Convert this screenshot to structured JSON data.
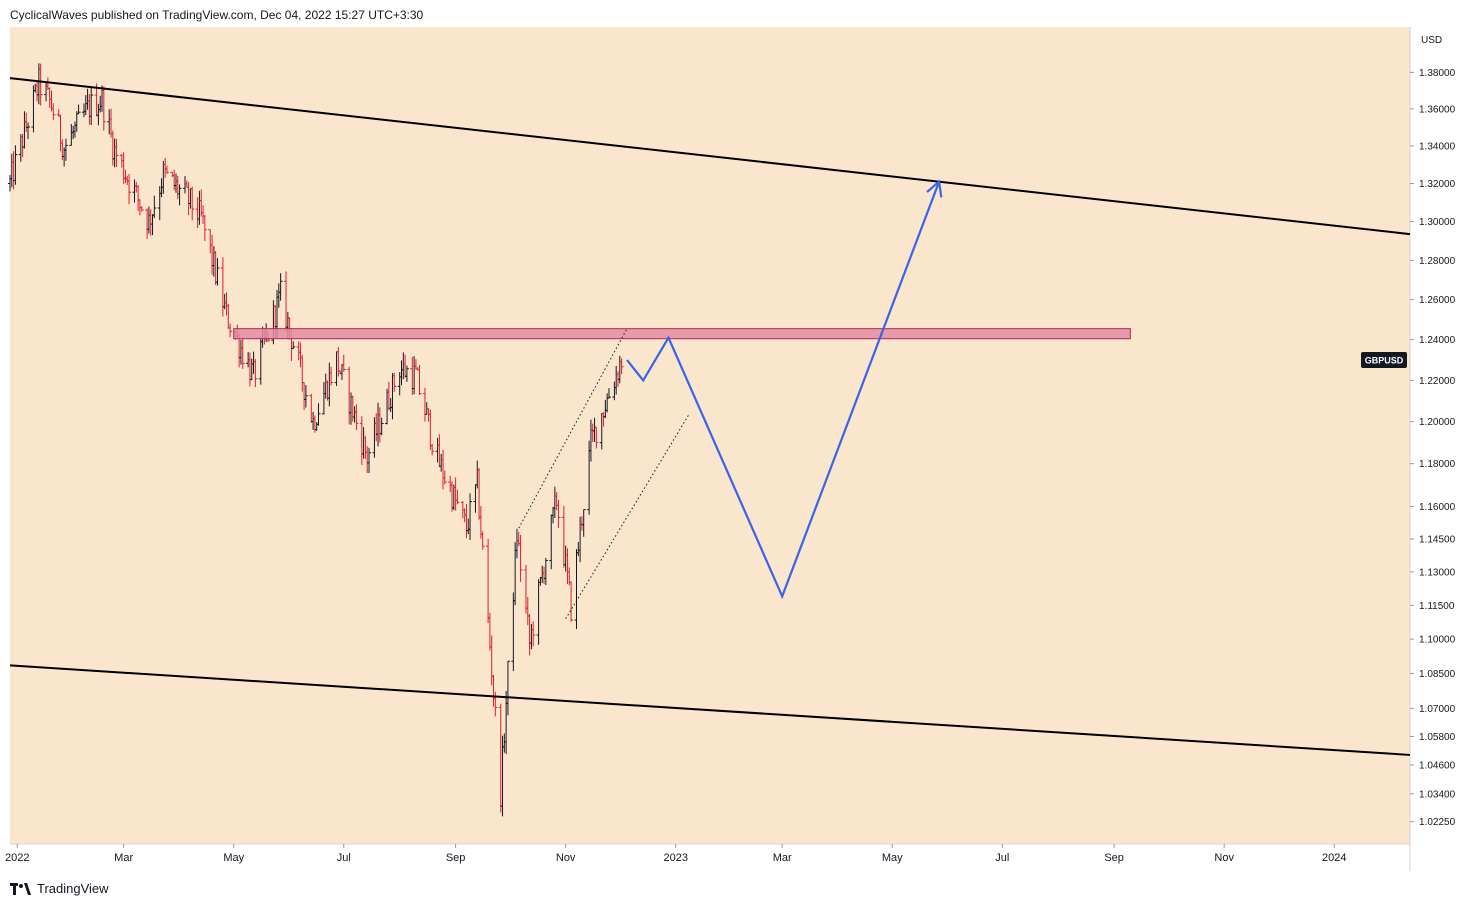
{
  "header": {
    "text": "CyclicalWaves published on TradingView.com, Dec 04, 2022 15:27 UTC+3:30"
  },
  "footer": {
    "brand": "TradingView"
  },
  "colors": {
    "background": "#fae5cd",
    "bull": "#131722",
    "bear": "#e01e2b",
    "projection": "#3864e8",
    "zone_fill": "#e28ea1",
    "zone_border": "#b8255f",
    "trendline": "#000000"
  },
  "chart_data": {
    "type": "ohlc",
    "symbol_label": "GBPUSD",
    "currency_label": "USD",
    "y_ticks": [
      "1.38000",
      "1.36000",
      "1.34000",
      "1.32000",
      "1.30000",
      "1.28000",
      "1.26000",
      "1.24000",
      "1.22000",
      "1.20000",
      "1.18000",
      "1.16000",
      "1.14500",
      "1.13000",
      "1.11500",
      "1.10000",
      "1.08500",
      "1.07000",
      "1.05800",
      "1.04600",
      "1.03400",
      "1.02250"
    ],
    "y_scale": "log",
    "ylim": [
      1.0175,
      1.3885
    ],
    "x_ticks": [
      {
        "label": "2022",
        "date": "2022-01-01"
      },
      {
        "label": "Mar",
        "date": "2022-03-01"
      },
      {
        "label": "May",
        "date": "2022-05-01"
      },
      {
        "label": "Jul",
        "date": "2022-07-01"
      },
      {
        "label": "Sep",
        "date": "2022-09-01"
      },
      {
        "label": "Nov",
        "date": "2022-11-01"
      },
      {
        "label": "2023",
        "date": "2023-01-01"
      },
      {
        "label": "Mar",
        "date": "2023-03-01"
      },
      {
        "label": "May",
        "date": "2023-05-01"
      },
      {
        "label": "Jul",
        "date": "2023-07-01"
      },
      {
        "label": "Sep",
        "date": "2023-09-01"
      },
      {
        "label": "Nov",
        "date": "2023-11-01"
      },
      {
        "label": "2024",
        "date": "2024-01-01"
      }
    ],
    "xlim": [
      "2021-12-28",
      "2024-02-12"
    ],
    "price_path": [
      [
        "2021-12-28",
        1.32
      ],
      [
        "2022-01-13",
        1.374
      ],
      [
        "2022-01-20",
        1.362
      ],
      [
        "2022-01-27",
        1.339
      ],
      [
        "2022-02-10",
        1.361
      ],
      [
        "2022-02-17",
        1.365
      ],
      [
        "2022-02-24",
        1.337
      ],
      [
        "2022-03-15",
        1.3
      ],
      [
        "2022-03-23",
        1.325
      ],
      [
        "2022-04-06",
        1.311
      ],
      [
        "2022-04-13",
        1.302
      ],
      [
        "2022-04-27",
        1.252
      ],
      [
        "2022-05-12",
        1.222
      ],
      [
        "2022-05-27",
        1.262
      ],
      [
        "2022-06-14",
        1.2
      ],
      [
        "2022-06-27",
        1.23
      ],
      [
        "2022-07-14",
        1.183
      ],
      [
        "2022-08-01",
        1.226
      ],
      [
        "2022-08-10",
        1.222
      ],
      [
        "2022-08-22",
        1.182
      ],
      [
        "2022-09-07",
        1.15
      ],
      [
        "2022-09-13",
        1.17
      ],
      [
        "2022-09-26",
        1.035
      ],
      [
        "2022-10-05",
        1.147
      ],
      [
        "2022-10-12",
        1.098
      ],
      [
        "2022-10-27",
        1.163
      ],
      [
        "2022-11-04",
        1.114
      ],
      [
        "2022-11-15",
        1.19
      ],
      [
        "2022-11-24",
        1.211
      ],
      [
        "2022-12-02",
        1.23
      ]
    ],
    "resistance_zone": {
      "from": "2022-05-01",
      "to": "2023-09-10",
      "low": 1.2405,
      "high": 1.2455
    },
    "upper_channel_line": {
      "from": [
        "2021-12-28",
        1.3768
      ],
      "to": [
        "2024-02-12",
        1.2935
      ]
    },
    "lower_channel_line": {
      "from": [
        "2021-12-28",
        1.0885
      ],
      "to": [
        "2024-02-12",
        1.0502
      ]
    },
    "dotted_channel_upper": {
      "from": [
        "2022-10-06",
        1.15
      ],
      "to": [
        "2022-12-05",
        1.2455
      ]
    },
    "dotted_channel_lower": {
      "from": [
        "2022-11-01",
        1.109
      ],
      "to": [
        "2023-01-08",
        1.203
      ]
    },
    "projection_path": [
      [
        "2022-12-05",
        1.23
      ],
      [
        "2022-12-14",
        1.22
      ],
      [
        "2022-12-28",
        1.241
      ],
      [
        "2023-03-01",
        1.119
      ],
      [
        "2023-05-27",
        1.321
      ]
    ]
  }
}
